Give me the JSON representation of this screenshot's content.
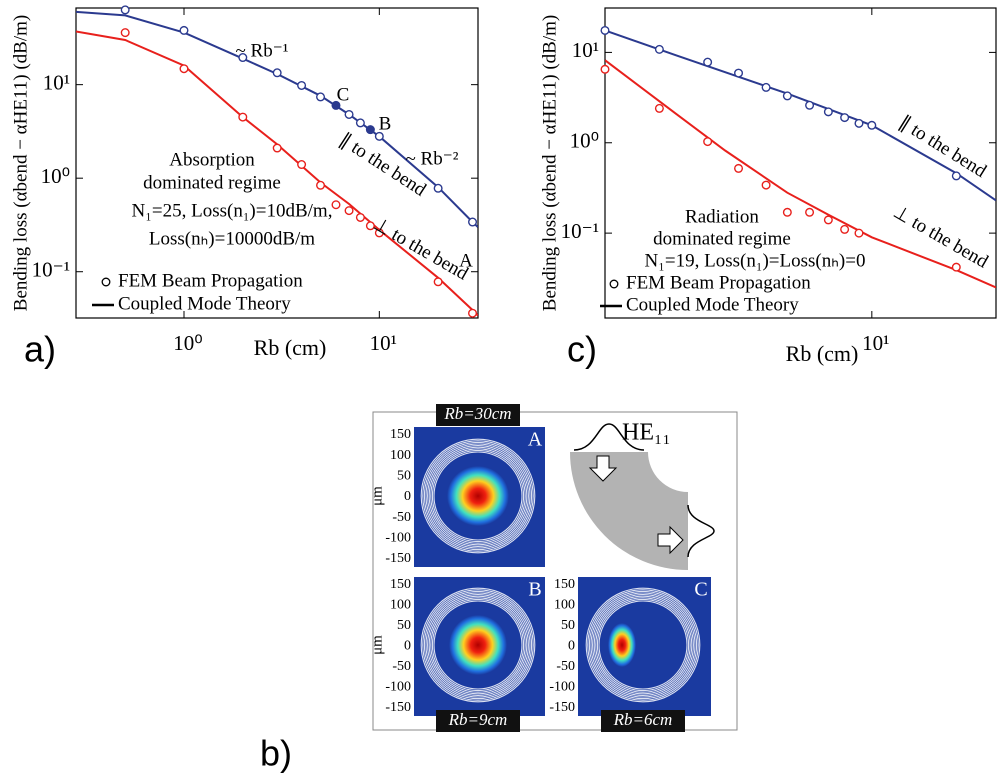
{
  "chart_data": [
    {
      "type": "line",
      "label": "a)",
      "ylabel": "Bending loss (αbend − αHE11) (dB/m)",
      "xlabel": "Rb (cm)",
      "xscale": "log",
      "yscale": "log",
      "xlim": [
        0.28,
        32
      ],
      "ylim": [
        0.032,
        66
      ],
      "xticks": [
        {
          "value": 1,
          "label": "10⁰"
        },
        {
          "value": 10,
          "label": "10¹"
        }
      ],
      "yticks": [
        {
          "value": 0.1,
          "label": "10⁻¹"
        },
        {
          "value": 1,
          "label": "10⁰"
        },
        {
          "value": 10,
          "label": "10¹"
        }
      ],
      "series": [
        {
          "color": "#2b3a8f",
          "marker": "line",
          "x": [
            0.28,
            0.5,
            1,
            2,
            3,
            5,
            7,
            10,
            20,
            30,
            32
          ],
          "values": [
            60,
            55,
            36,
            19,
            13,
            7.6,
            4.8,
            2.8,
            0.8,
            0.34,
            0.3
          ]
        },
        {
          "color": "#e8201c",
          "marker": "line",
          "x": [
            0.28,
            0.5,
            1,
            2,
            3,
            5,
            7,
            10,
            20,
            30,
            32
          ],
          "values": [
            37,
            30,
            16,
            4.5,
            2.3,
            0.9,
            0.53,
            0.28,
            0.086,
            0.039,
            0.034
          ]
        },
        {
          "color": "#2b3a8f",
          "marker": "circle",
          "filled": false,
          "x": [
            0.5,
            1,
            2,
            3,
            4,
            5,
            7,
            8,
            10,
            20,
            30
          ],
          "values": [
            63,
            38,
            19.5,
            13.4,
            9.8,
            7.4,
            4.8,
            3.9,
            2.8,
            0.78,
            0.34
          ]
        },
        {
          "color": "#2b3a8f",
          "marker": "circle",
          "filled": true,
          "x": [
            6,
            9
          ],
          "values": [
            6.0,
            3.3
          ]
        },
        {
          "color": "#e8201c",
          "marker": "circle",
          "filled": false,
          "x": [
            0.5,
            1,
            2,
            3,
            4,
            5,
            6,
            7,
            8,
            9,
            10,
            20,
            30
          ],
          "values": [
            36,
            14.8,
            4.5,
            2.1,
            1.4,
            0.84,
            0.52,
            0.45,
            0.38,
            0.31,
            0.26,
            0.078,
            0.036
          ]
        }
      ],
      "annotations": [
        "~ Rb⁻¹",
        "~ Rb⁻²",
        "C",
        "B",
        "A",
        "∥ to the bend",
        "⊥ to the bend",
        "Absorption",
        "dominated regime",
        "N₁=25, Loss(n₁)=10dB/m,",
        "Loss(nₕ)=10000dB/m"
      ],
      "legend": [
        {
          "label": "FEM Beam Propagation",
          "marker": "circle"
        },
        {
          "label": "Coupled Mode Theory",
          "marker": "line"
        }
      ]
    },
    {
      "type": "line",
      "label": "c)",
      "ylabel": "Bending loss (αbend − αHE11) (dB/m)",
      "xlabel": "Rb (cm)",
      "xscale": "log",
      "yscale": "log",
      "xlim": [
        1.12,
        27.7
      ],
      "ylim": [
        0.0115,
        31
      ],
      "xticks": [
        {
          "value": 10,
          "label": "10¹"
        }
      ],
      "yticks": [
        {
          "value": 0.1,
          "label": "10⁻¹"
        },
        {
          "value": 1,
          "label": "10⁰"
        },
        {
          "value": 10,
          "label": "10¹"
        }
      ],
      "series": [
        {
          "color": "#2b3a8f",
          "marker": "line",
          "x": [
            1.12,
            2,
            5,
            10,
            20,
            27.7
          ],
          "values": [
            17.5,
            9.3,
            3.5,
            1.56,
            0.46,
            0.23
          ]
        },
        {
          "color": "#e8201c",
          "marker": "line",
          "x": [
            1.12,
            2,
            3,
            5,
            7,
            10,
            20,
            27.7
          ],
          "values": [
            8.2,
            2.1,
            0.82,
            0.28,
            0.16,
            0.09,
            0.039,
            0.025
          ]
        },
        {
          "color": "#2b3a8f",
          "marker": "circle",
          "filled": false,
          "x": [
            1.12,
            1.75,
            2.6,
            3.35,
            4.2,
            5,
            6,
            7,
            8,
            9,
            10,
            20
          ],
          "values": [
            17.5,
            10.8,
            7.8,
            5.9,
            4.1,
            3.3,
            2.6,
            2.2,
            1.9,
            1.64,
            1.56,
            0.43
          ]
        },
        {
          "color": "#e8201c",
          "marker": "circle",
          "filled": false,
          "x": [
            1.12,
            1.75,
            2.6,
            3.35,
            4.2,
            5,
            6,
            7,
            8,
            9,
            20
          ],
          "values": [
            6.5,
            2.4,
            1.03,
            0.52,
            0.34,
            0.17,
            0.17,
            0.14,
            0.11,
            0.1,
            0.042
          ]
        }
      ],
      "annotations": [
        "∥ to the bend",
        "⊥ to the bend",
        "Radiation",
        "dominated regime",
        "N₁=19, Loss(n₁)=Loss(nₕ)=0"
      ],
      "legend": [
        {
          "label": "FEM Beam Propagation",
          "marker": "circle"
        },
        {
          "label": "Coupled Mode Theory",
          "marker": "line"
        }
      ]
    }
  ],
  "panel_b": {
    "label": "b)",
    "ylabel": "μm",
    "mode_label": "HE₁₁",
    "yticks": [
      150,
      100,
      50,
      0,
      -50,
      -100,
      -150
    ],
    "images": [
      {
        "title": "Rb=30cm",
        "letter": "A"
      },
      {
        "title": "Rb=9cm",
        "letter": "B"
      },
      {
        "title": "Rb=6cm",
        "letter": "C"
      }
    ]
  }
}
